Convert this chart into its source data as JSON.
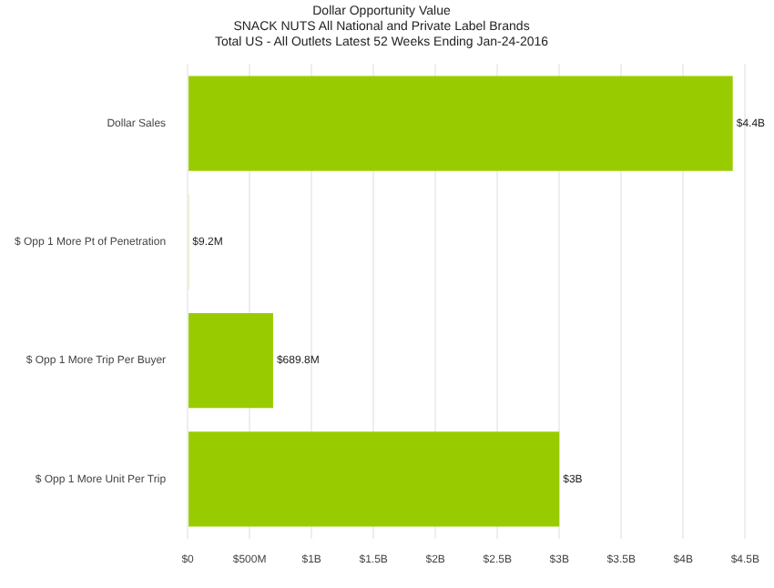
{
  "chart_data": {
    "type": "bar",
    "orientation": "horizontal",
    "title": "Dollar Opportunity Value",
    "subtitle": "SNACK NUTS All National and Private Label Brands\nTotal US - All Outlets Latest 52 Weeks Ending Jan-24-2016",
    "categories": [
      "Dollar Sales",
      "$ Opp 1 More Pt of Penetration",
      "$ Opp 1 More Trip Per Buyer",
      "$ Opp 1 More Unit Per Trip"
    ],
    "values": [
      4400000000,
      9200000,
      689800000,
      3000000000
    ],
    "value_labels": [
      "$4.4B",
      "$9.2M",
      "$689.8M",
      "$3B"
    ],
    "color": "#99cc00",
    "xlim": [
      0,
      4500000000
    ],
    "xticks": [
      {
        "value": 0,
        "label": "$0"
      },
      {
        "value": 500000000,
        "label": "$500M"
      },
      {
        "value": 1000000000,
        "label": "$1B"
      },
      {
        "value": 1500000000,
        "label": "$1.5B"
      },
      {
        "value": 2000000000,
        "label": "$2B"
      },
      {
        "value": 2500000000,
        "label": "$2.5B"
      },
      {
        "value": 3000000000,
        "label": "$3B"
      },
      {
        "value": 3500000000,
        "label": "$3.5B"
      },
      {
        "value": 4000000000,
        "label": "$4B"
      },
      {
        "value": 4500000000,
        "label": "$4.5B"
      }
    ],
    "grid": "x",
    "legend": false
  }
}
